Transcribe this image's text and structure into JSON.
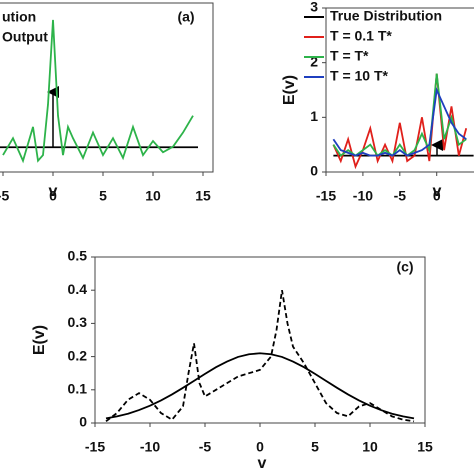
{
  "chart_data": [
    {
      "type": "line",
      "title": "(a)",
      "xlabel": "v",
      "xlim": [
        -10,
        16
      ],
      "xticks": [
        -5,
        0,
        5,
        10,
        15
      ],
      "ylim": [
        0,
        3
      ],
      "series": [
        {
          "name": "ution",
          "color": "#000000",
          "x": [
            -10,
            14.5
          ],
          "values": [
            0.44,
            0.44
          ]
        },
        {
          "name": "Output",
          "color": "#2db34a",
          "x": [
            -5,
            -4,
            -3,
            -2,
            -1.5,
            -1,
            -0.5,
            0,
            0.5,
            1,
            1.5,
            2,
            3,
            4,
            5,
            6,
            7,
            8,
            9,
            10,
            11,
            12,
            13,
            14
          ],
          "values": [
            0.3,
            0.6,
            0.2,
            0.8,
            0.2,
            0.3,
            1.2,
            2.7,
            1.0,
            0.3,
            0.8,
            0.6,
            0.25,
            0.7,
            0.3,
            0.6,
            0.25,
            0.8,
            0.3,
            0.55,
            0.35,
            0.45,
            0.7,
            1.0
          ]
        }
      ]
    },
    {
      "type": "line",
      "xlabel": "v",
      "ylabel": "E(v)",
      "xlim": [
        -15,
        6
      ],
      "xticks": [
        -15,
        -10,
        -5,
        0
      ],
      "ylim": [
        0,
        3
      ],
      "yticks": [
        0,
        1,
        2,
        3
      ],
      "series": [
        {
          "name": "True Distribution",
          "color": "#000000",
          "x": [
            -14,
            5
          ],
          "values": [
            0.3,
            0.3
          ]
        },
        {
          "name": "T = 0.1 T*",
          "color": "#e0201b",
          "x": [
            -14,
            -13,
            -12,
            -11,
            -10,
            -9,
            -8,
            -7,
            -6,
            -5,
            -4,
            -3,
            -2,
            -1,
            0,
            1,
            2,
            3,
            4
          ],
          "values": [
            0.5,
            0.2,
            0.6,
            0.1,
            0.4,
            0.8,
            0.2,
            0.5,
            0.2,
            0.9,
            0.2,
            0.3,
            1.0,
            0.2,
            1.8,
            0.4,
            1.2,
            0.3,
            0.8
          ]
        },
        {
          "name": "T = T*",
          "color": "#2db34a",
          "x": [
            -14,
            -13,
            -12,
            -11,
            -10,
            -9,
            -8,
            -7,
            -6,
            -5,
            -4,
            -3,
            -2,
            -1,
            0,
            1,
            2,
            3,
            4
          ],
          "values": [
            0.5,
            0.3,
            0.4,
            0.3,
            0.4,
            0.5,
            0.3,
            0.4,
            0.3,
            0.5,
            0.3,
            0.4,
            0.7,
            0.4,
            1.8,
            0.6,
            1.0,
            0.5,
            0.6
          ]
        },
        {
          "name": "T = 10 T*",
          "color": "#1f3fbf",
          "x": [
            -14,
            -13,
            -12,
            -11,
            -10,
            -9,
            -8,
            -7,
            -6,
            -5,
            -4,
            -3,
            -2,
            -1,
            0,
            1,
            2,
            3,
            4
          ],
          "values": [
            0.6,
            0.4,
            0.35,
            0.3,
            0.35,
            0.3,
            0.3,
            0.35,
            0.3,
            0.4,
            0.3,
            0.35,
            0.4,
            0.5,
            1.5,
            1.2,
            0.9,
            0.7,
            0.6
          ]
        }
      ]
    },
    {
      "type": "line",
      "title": "(c)",
      "xlabel": "v",
      "ylabel": "E(v)",
      "xlim": [
        -15,
        15
      ],
      "xticks": [
        -15,
        -10,
        -5,
        0,
        5,
        10,
        15
      ],
      "ylim": [
        0,
        0.5
      ],
      "yticks": [
        0,
        0.1,
        0.2,
        0.3,
        0.4,
        0.5
      ],
      "series": [
        {
          "color": "#000000",
          "x": [
            -14,
            -13,
            -12,
            -11,
            -10,
            -9,
            -8,
            -7,
            -6,
            -5,
            -4,
            -3,
            -2,
            -1,
            0,
            1,
            2,
            3,
            4,
            5,
            6,
            7,
            8,
            9,
            10,
            11,
            12,
            13,
            14
          ],
          "values": [
            0.014,
            0.02,
            0.028,
            0.039,
            0.052,
            0.068,
            0.086,
            0.106,
            0.127,
            0.148,
            0.168,
            0.185,
            0.199,
            0.207,
            0.21,
            0.207,
            0.199,
            0.185,
            0.168,
            0.148,
            0.127,
            0.106,
            0.086,
            0.068,
            0.052,
            0.039,
            0.028,
            0.02,
            0.014
          ]
        },
        {
          "color": "#000000",
          "dash": true,
          "x": [
            -14,
            -13,
            -12,
            -11,
            -10,
            -9,
            -8,
            -7,
            -6.5,
            -6,
            -5.5,
            -5,
            -4,
            -3,
            -2,
            -1,
            0,
            1,
            1.5,
            2,
            2.5,
            3,
            4,
            5,
            6,
            7,
            8,
            9,
            10,
            11,
            12,
            13,
            14
          ],
          "values": [
            0.005,
            0.03,
            0.07,
            0.09,
            0.07,
            0.03,
            0.01,
            0.05,
            0.15,
            0.24,
            0.12,
            0.08,
            0.1,
            0.12,
            0.14,
            0.15,
            0.16,
            0.2,
            0.28,
            0.4,
            0.3,
            0.23,
            0.18,
            0.12,
            0.06,
            0.03,
            0.02,
            0.05,
            0.06,
            0.04,
            0.02,
            0.01,
            0.005
          ]
        }
      ]
    }
  ]
}
